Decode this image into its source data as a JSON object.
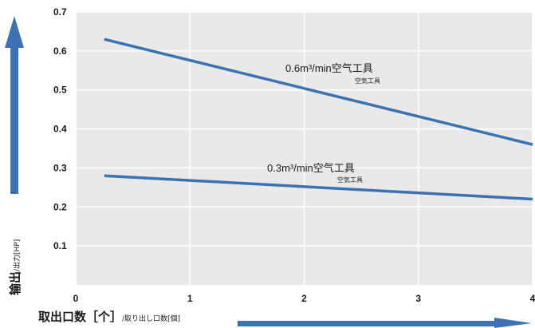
{
  "chart_data": {
    "type": "line",
    "x_ticks": [
      "0",
      "1",
      "2",
      "3",
      "4"
    ],
    "y_ticks": [
      "0.1",
      "0.2",
      "0.3",
      "0.4",
      "0.5",
      "0.6",
      "0.7"
    ],
    "xlim": [
      0,
      4
    ],
    "ylim": [
      0,
      0.7
    ],
    "grid": true,
    "series": [
      {
        "name": "0.6m³/min空气工具",
        "sub": "空気工具",
        "x": [
          0.25,
          4
        ],
        "y": [
          0.63,
          0.36
        ]
      },
      {
        "name": "0.3m³/min空气工具",
        "sub": "空気工具",
        "x": [
          0.25,
          4
        ],
        "y": [
          0.28,
          0.22
        ]
      }
    ],
    "ylabel": {
      "main": "输出",
      "sub": "/出力[HP]"
    },
    "xlabel": {
      "main": "取出口数［个］",
      "sub": "/取り出し口数[個]"
    },
    "colors": {
      "line": "#3d72b2",
      "arrow": "#3d72b2",
      "plot_bg": "#e9e9e9",
      "grid": "#ffffff"
    }
  }
}
